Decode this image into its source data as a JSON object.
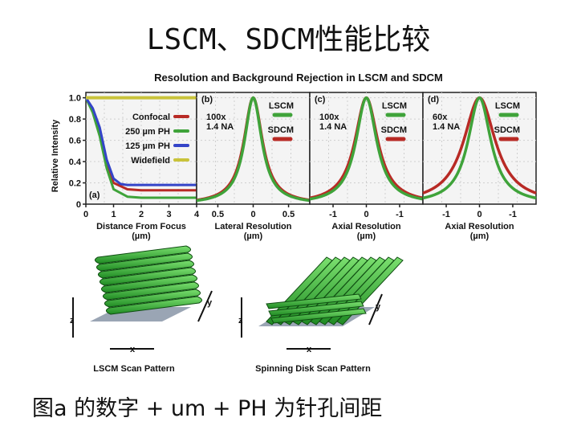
{
  "slide": {
    "title": "LSCM、SDCM性能比较",
    "caption": "图a 的数字 + um + PH 为针孔间距"
  },
  "colors": {
    "confocal": "#b82a25",
    "ph250": "#3fa33a",
    "ph125": "#3444c8",
    "widefield": "#c9c33a",
    "lscm": "#3fa33a",
    "sdcm": "#b82a25",
    "panel_bg": "#f4f4f4"
  },
  "chart_data": [
    {
      "type": "line",
      "panel": "(a)",
      "title": "Resolution and Background Rejection in LSCM and SDCM",
      "xlabel": "Distance From Focus",
      "xunit": "(µm)",
      "ylabel": "Relative Intensity",
      "xlim": [
        0,
        4
      ],
      "ylim": [
        0,
        1.05
      ],
      "x_ticks": [
        "0",
        "1",
        "2",
        "3",
        "4"
      ],
      "y_ticks": [
        "0",
        "0.2",
        "0.4",
        "0.6",
        "0.8",
        "1.0"
      ],
      "legend_position": "top-center",
      "series": [
        {
          "name": "Confocal",
          "x": [
            0,
            0.25,
            0.5,
            0.75,
            1.0,
            1.5,
            2,
            3,
            4
          ],
          "y": [
            1.0,
            0.88,
            0.68,
            0.38,
            0.2,
            0.14,
            0.13,
            0.13,
            0.13
          ]
        },
        {
          "name": "250 µm PH",
          "x": [
            0,
            0.25,
            0.5,
            0.75,
            1.0,
            1.5,
            2,
            3,
            4
          ],
          "y": [
            1.0,
            0.86,
            0.64,
            0.34,
            0.14,
            0.07,
            0.06,
            0.06,
            0.06
          ]
        },
        {
          "name": "125 µm PH",
          "x": [
            0,
            0.25,
            0.5,
            0.75,
            1.0,
            1.25,
            1.5,
            2,
            3,
            4
          ],
          "y": [
            1.0,
            0.9,
            0.72,
            0.42,
            0.24,
            0.19,
            0.18,
            0.18,
            0.18,
            0.18
          ]
        },
        {
          "name": "Widefield",
          "x": [
            0,
            1,
            2,
            3,
            4
          ],
          "y": [
            1.0,
            1.0,
            1.0,
            1.0,
            1.0
          ]
        }
      ]
    },
    {
      "type": "line",
      "panel": "(b)",
      "objective": [
        "100x",
        "1.4 NA"
      ],
      "xlabel": "Lateral Resolution",
      "xunit": "(µm)",
      "xlim": [
        -0.8,
        0.8
      ],
      "ylim": [
        0,
        1.05
      ],
      "x_ticks": [
        "0.5",
        "0",
        "0.5"
      ],
      "series": [
        {
          "name": "LSCM",
          "width": 0.15
        },
        {
          "name": "SDCM",
          "width": 0.16
        }
      ]
    },
    {
      "type": "line",
      "panel": "(c)",
      "objective": [
        "100x",
        "1.4 NA"
      ],
      "xlabel": "Axial Resolution",
      "xunit": "(µm)",
      "xlim": [
        -1.7,
        1.7
      ],
      "ylim": [
        0,
        1.05
      ],
      "x_ticks": [
        "-1",
        "0",
        "-1"
      ],
      "series": [
        {
          "name": "LSCM",
          "width": 0.38
        },
        {
          "name": "SDCM",
          "width": 0.42
        }
      ]
    },
    {
      "type": "line",
      "panel": "(d)",
      "objective": [
        "60x",
        "1.4 NA"
      ],
      "xlabel": "Axial Resolution",
      "xunit": "(µm)",
      "xlim": [
        -1.7,
        1.7
      ],
      "ylim": [
        0,
        1.05
      ],
      "x_ticks": [
        "-1",
        "0",
        "-1"
      ],
      "series": [
        {
          "name": "LSCM",
          "width": 0.42
        },
        {
          "name": "SDCM",
          "width": 0.58
        }
      ]
    }
  ],
  "scan_patterns": {
    "lscm_label": "LSCM Scan Pattern",
    "sdcm_label": "Spinning Disk Scan Pattern",
    "axis_x": "x",
    "axis_y": "y",
    "axis_z": "z"
  }
}
